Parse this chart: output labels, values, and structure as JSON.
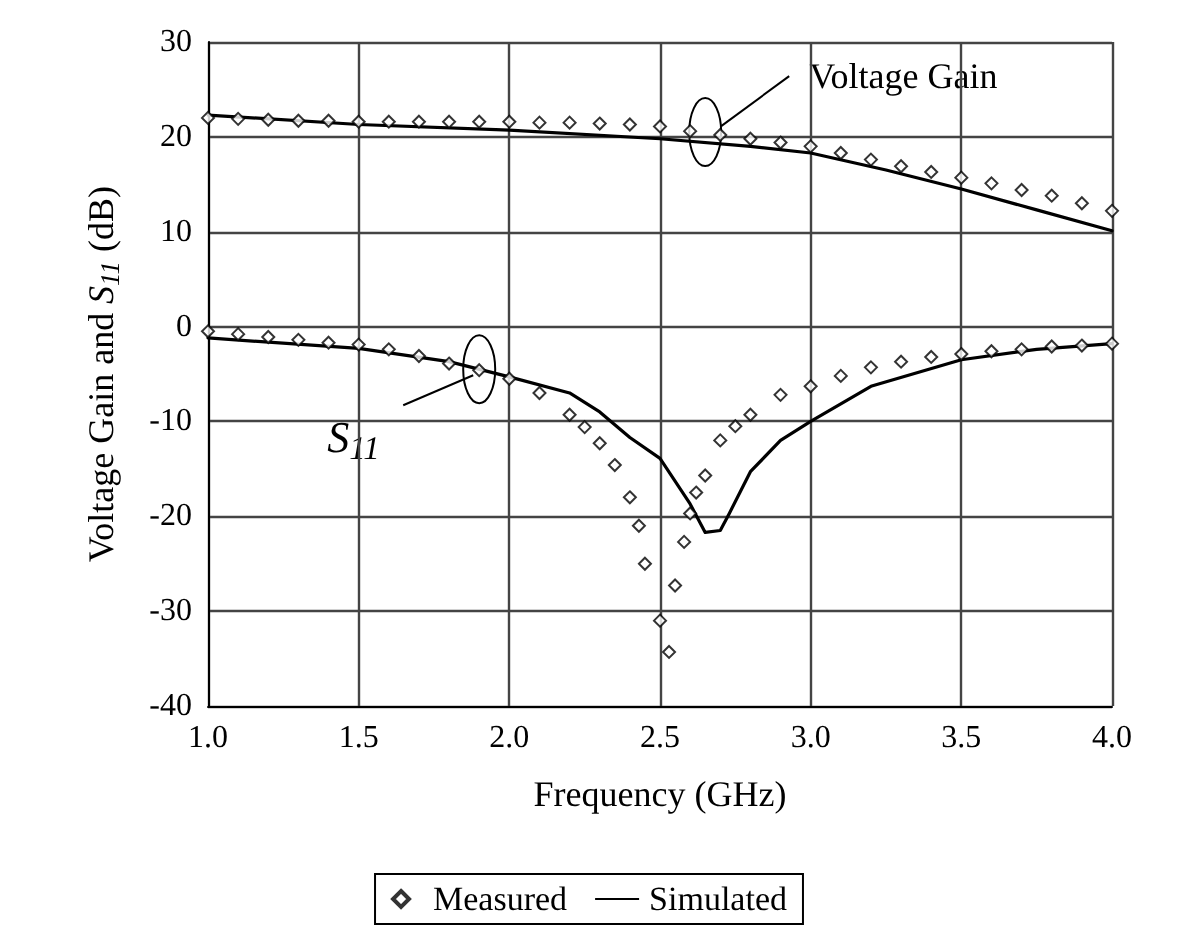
{
  "chart_data": {
    "type": "line",
    "xlabel": "Frequency (GHz)",
    "ylabel": "Voltage Gain and S$_{11}$ (dB)",
    "xlim": [
      1,
      4
    ],
    "xticks": [
      {
        "value": 1,
        "label": "1.0"
      },
      {
        "value": 1.5,
        "label": "1.5"
      },
      {
        "value": 2,
        "label": "2.0"
      },
      {
        "value": 2.5,
        "label": "2.5"
      },
      {
        "value": 3,
        "label": "3.0"
      },
      {
        "value": 3.5,
        "label": "3.5"
      },
      {
        "value": 4,
        "label": "4.0"
      }
    ],
    "ylim": [
      -40,
      30
    ],
    "yticks": [
      -40,
      -30,
      -20,
      -10,
      0,
      10,
      20,
      30
    ],
    "grid": true,
    "legend": "bottom",
    "series": [
      {
        "name": "Measured",
        "type": "scatter",
        "marker": "diamond",
        "color": "#000000",
        "x": [
          1.0,
          1.1,
          1.2,
          1.3,
          1.4,
          1.5,
          1.6,
          1.7,
          1.8,
          1.9,
          2.0,
          2.1,
          2.2,
          2.3,
          2.4,
          2.5,
          2.6,
          2.7,
          2.8,
          2.9,
          3.0,
          3.1,
          3.2,
          3.3,
          3.4,
          3.5,
          3.6,
          3.7,
          3.8,
          3.9,
          4.0
        ],
        "values": [
          22,
          21.9,
          21.8,
          21.7,
          21.7,
          21.6,
          21.6,
          21.6,
          21.6,
          21.6,
          21.6,
          21.5,
          21.5,
          21.4,
          21.3,
          21.1,
          20.6,
          20.2,
          19.8,
          19.4,
          19.0,
          18.3,
          17.6,
          16.9,
          16.3,
          15.7,
          15.1,
          14.4,
          13.8,
          13.0,
          12.2
        ]
      },
      {
        "type": "scatter",
        "marker": "diamond",
        "color": "#000000",
        "x": [
          1.0,
          1.1,
          1.2,
          1.3,
          1.4,
          1.5,
          1.6,
          1.7,
          1.8,
          1.9,
          2.0,
          2.1,
          2.2,
          2.25,
          2.3,
          2.35,
          2.4,
          2.43,
          2.45,
          2.5,
          2.53,
          2.55,
          2.58,
          2.6,
          2.62,
          2.65,
          2.7,
          2.75,
          2.8,
          2.9,
          3.0,
          3.1,
          3.2,
          3.3,
          3.4,
          3.5,
          3.6,
          3.7,
          3.8,
          3.9,
          4.0
        ],
        "values": [
          -0.5,
          -0.8,
          -1.1,
          -1.4,
          -1.7,
          -1.9,
          -2.4,
          -3.1,
          -3.9,
          -4.6,
          -5.5,
          -7.0,
          -9.3,
          -10.6,
          -12.3,
          -14.6,
          -18,
          -21,
          -25,
          -31,
          -34.3,
          -27.3,
          -22.7,
          -19.7,
          -17.5,
          -15.7,
          -12,
          -10.5,
          -9.3,
          -7.2,
          -6.3,
          -5.2,
          -4.3,
          -3.7,
          -3.2,
          -2.9,
          -2.6,
          -2.4,
          -2.1,
          -2.0,
          -1.8
        ]
      },
      {
        "name": "Simulated",
        "marker": "none",
        "color": "#000000",
        "x": [
          1.0,
          1.5,
          2.0,
          2.5,
          2.8,
          3.0,
          3.25,
          3.5,
          3.75,
          4.0
        ],
        "values": [
          22.3,
          21.3,
          20.7,
          19.8,
          19.0,
          18.3,
          16.5,
          14.5,
          12.3,
          10.1
        ]
      },
      {
        "marker": "none",
        "color": "#000000",
        "x": [
          1.0,
          1.5,
          1.8,
          2.0,
          2.2,
          2.3,
          2.4,
          2.5,
          2.6,
          2.65,
          2.7,
          2.73,
          2.8,
          2.9,
          3.0,
          3.2,
          3.5,
          3.75,
          4.0
        ],
        "values": [
          -1.2,
          -2.3,
          -3.7,
          -5.3,
          -7,
          -9,
          -11.7,
          -13.9,
          -18.7,
          -21.7,
          -21.5,
          -19.7,
          -15.3,
          -12,
          -10,
          -6.3,
          -3.5,
          -2.4,
          -1.8
        ]
      }
    ],
    "annotations": [
      {
        "text": "Voltage Gain",
        "x": 2.65,
        "y": 20.5
      },
      {
        "text": "S$_{11}$",
        "x": 1.9,
        "y": -4.5
      }
    ]
  }
}
